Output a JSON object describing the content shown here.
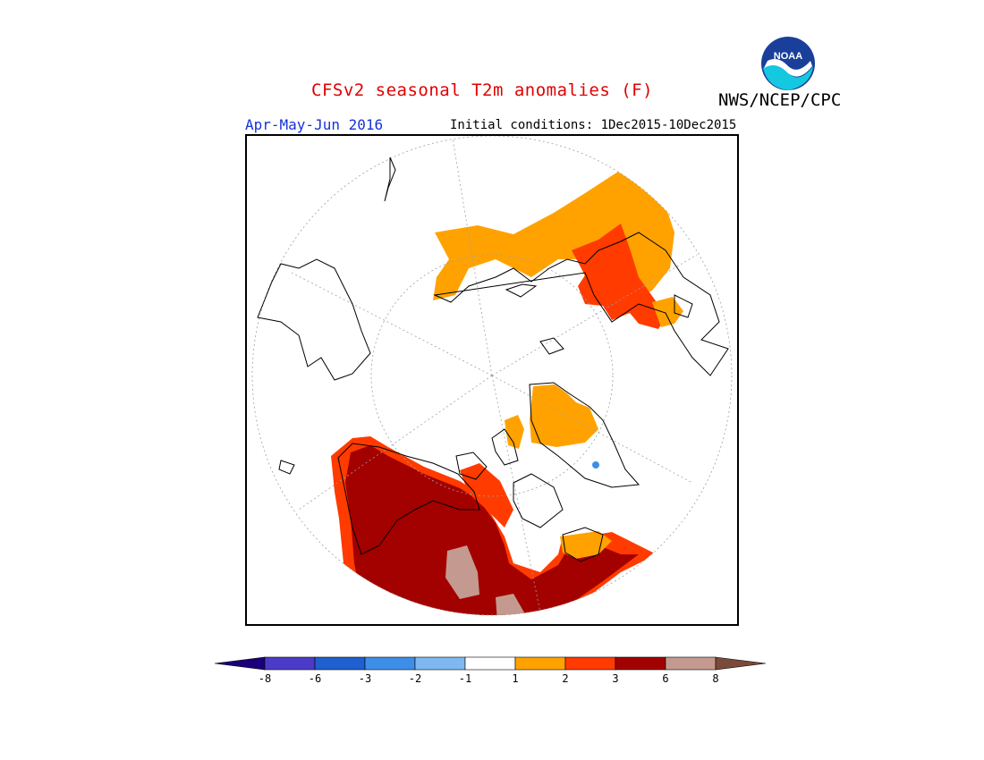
{
  "header": {
    "title": "CFSv2 seasonal T2m anomalies (F)",
    "agency": "NWS/NCEP/CPC",
    "season": "Apr-May-Jun 2016",
    "initial_conditions": "Initial conditions: 1Dec2015-10Dec2015",
    "logo_text": "NOAA"
  },
  "map": {
    "projection": "north-polar-stereographic",
    "land_outline_color": "#000000",
    "graticule_color": "#a0a0a0"
  },
  "legend": {
    "unit": "F",
    "colors": [
      "#1a007a",
      "#4b3cc8",
      "#1f5fcf",
      "#3e8ee8",
      "#7fb8f0",
      "#ffffff",
      "#ffa200",
      "#ff3b00",
      "#a30000",
      "#c49a90",
      "#7a4a3a"
    ],
    "tick_labels": [
      "-8",
      "-6",
      "-3",
      "-2",
      "-1",
      "1",
      "2",
      "3",
      "6",
      "8"
    ]
  }
}
